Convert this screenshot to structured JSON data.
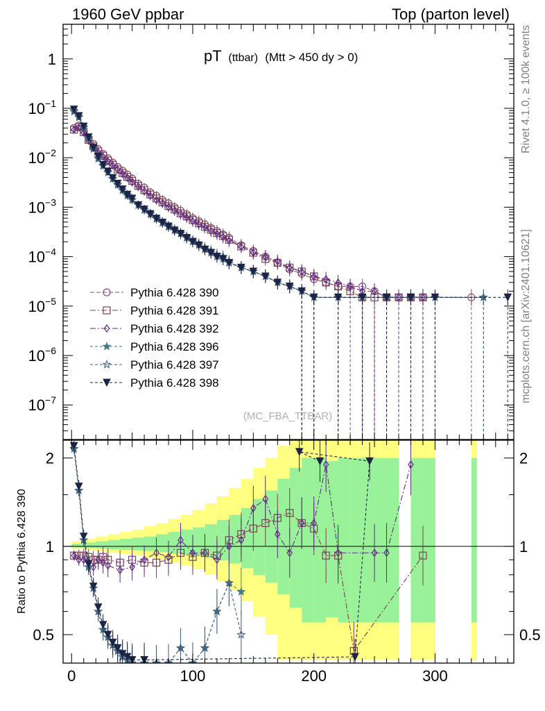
{
  "header": {
    "left": "1960 GeV ppbar",
    "right": "Top (parton level)"
  },
  "title": {
    "main": "pT",
    "sub1": "(ttbar)",
    "sub2": "(Mtt > 450 dy > 0)"
  },
  "side_labels": {
    "rivet": "Rivet 4.1.0, ≥ 100k events",
    "mcplots": "mcplots.cern.ch [arXiv:2401.10621]"
  },
  "watermark": "(MC_FBA_TTBAR)",
  "chart_data": {
    "type": "line",
    "title": "pT (ttbar) (Mtt > 450 dy > 0)",
    "xlabel": "",
    "ylabel": "",
    "ratio_ylabel": "Ratio to Pythia 6.428 390",
    "xlim": [
      -7,
      365
    ],
    "ylim": [
      2e-08,
      5
    ],
    "ylog": true,
    "ratio_ylim": [
      0.4,
      2.3
    ],
    "ratio_ylog": true,
    "x_ticks": [
      "0",
      "100",
      "200",
      "300"
    ],
    "x_tick_values": [
      0,
      100,
      200,
      300
    ],
    "y_ticks": [
      {
        "base": "1",
        "exp": "",
        "value": 1
      },
      {
        "base": "10",
        "exp": "−1",
        "value": 0.1
      },
      {
        "base": "10",
        "exp": "−2",
        "value": 0.01
      },
      {
        "base": "10",
        "exp": "−3",
        "value": 0.001
      },
      {
        "base": "10",
        "exp": "−4",
        "value": 0.0001
      },
      {
        "base": "10",
        "exp": "−5",
        "value": 1e-05
      },
      {
        "base": "10",
        "exp": "−6",
        "value": 1e-06
      },
      {
        "base": "10",
        "exp": "−7",
        "value": 1e-07
      }
    ],
    "ratio_ticks": [
      {
        "label": "2",
        "value": 2
      },
      {
        "label": "1",
        "value": 1
      },
      {
        "label": "0.5",
        "value": 0.5
      }
    ],
    "legend_position": "lower-left",
    "series": [
      {
        "name": "Pythia 6.428 390",
        "color": "#8a4d6e",
        "marker": "circle",
        "dash": "6,3",
        "x": [
          2,
          6,
          10,
          14,
          18,
          22,
          26,
          30,
          34,
          38,
          42,
          46,
          50,
          55,
          60,
          65,
          70,
          75,
          80,
          85,
          90,
          95,
          100,
          105,
          110,
          115,
          120,
          125,
          130,
          140,
          150,
          160,
          170,
          180,
          190,
          200,
          210,
          220,
          230,
          240,
          250,
          260,
          270,
          280,
          290,
          330
        ],
        "y": [
          0.04,
          0.045,
          0.035,
          0.025,
          0.019,
          0.015,
          0.012,
          0.0098,
          0.008,
          0.0065,
          0.0055,
          0.0046,
          0.0038,
          0.003,
          0.0025,
          0.002,
          0.0017,
          0.0014,
          0.0012,
          0.001,
          0.00085,
          0.00072,
          0.0006,
          0.00052,
          0.00045,
          0.00038,
          0.00033,
          0.00028,
          0.00024,
          0.00017,
          0.00013,
          0.0001,
          7.5e-05,
          5.5e-05,
          4.5e-05,
          3.5e-05,
          3e-05,
          2.5e-05,
          2.5e-05,
          2.5e-05,
          2e-05,
          1.5e-05,
          1.5e-05,
          1.5e-05,
          1.5e-05,
          1.5e-05
        ]
      },
      {
        "name": "Pythia 6.428 391",
        "color": "#7a4050",
        "marker": "square",
        "dash": "8,3,2,3",
        "x": [
          2,
          6,
          10,
          14,
          18,
          22,
          26,
          30,
          34,
          38,
          42,
          46,
          50,
          55,
          60,
          65,
          70,
          75,
          80,
          85,
          90,
          95,
          100,
          105,
          110,
          115,
          120,
          125,
          130,
          140,
          150,
          160,
          170,
          180,
          190,
          200,
          210,
          220,
          230,
          240,
          250,
          260,
          270,
          280,
          290
        ],
        "y": [
          0.037,
          0.042,
          0.033,
          0.023,
          0.017,
          0.0135,
          0.011,
          0.0088,
          0.0072,
          0.0058,
          0.0049,
          0.0041,
          0.0034,
          0.0027,
          0.0022,
          0.0018,
          0.0015,
          0.00125,
          0.00105,
          0.0009,
          0.00075,
          0.00065,
          0.00055,
          0.00047,
          0.0004,
          0.00035,
          0.0003,
          0.00026,
          0.00022,
          0.00016,
          0.00012,
          9e-05,
          7.5e-05,
          6e-05,
          5e-05,
          4e-05,
          3e-05,
          2.5e-05,
          2e-05,
          1.5e-05,
          1.5e-05,
          1.5e-05,
          1.5e-05,
          1.5e-05,
          1.5e-05
        ]
      },
      {
        "name": "Pythia 6.428 392",
        "color": "#5c2a86",
        "marker": "diamond",
        "dash": "8,3,2,3",
        "x": [
          2,
          6,
          10,
          14,
          18,
          22,
          26,
          30,
          34,
          38,
          42,
          46,
          50,
          55,
          60,
          65,
          70,
          75,
          80,
          85,
          90,
          95,
          100,
          105,
          110,
          115,
          120,
          125,
          130,
          140,
          150,
          160,
          170,
          180,
          190,
          200,
          210,
          220,
          230,
          240,
          250,
          260,
          270,
          280,
          290
        ],
        "y": [
          0.037,
          0.041,
          0.032,
          0.022,
          0.016,
          0.013,
          0.0105,
          0.0085,
          0.007,
          0.0057,
          0.0047,
          0.0039,
          0.0032,
          0.0026,
          0.0021,
          0.0017,
          0.0014,
          0.0012,
          0.001,
          0.00085,
          0.00072,
          0.00062,
          0.00052,
          0.00045,
          0.00039,
          0.00033,
          0.00029,
          0.00025,
          0.00021,
          0.00016,
          0.00012,
          0.0001,
          8e-05,
          6e-05,
          5e-05,
          4e-05,
          3.5e-05,
          3e-05,
          2.5e-05,
          2e-05,
          2e-05,
          1.5e-05,
          1.5e-05,
          1.5e-05,
          1.5e-05
        ]
      },
      {
        "name": "Pythia 6.428 396",
        "color": "#4b7a85",
        "marker": "star",
        "dash": "4,3",
        "x": [
          2,
          6,
          10,
          14,
          18,
          22,
          26,
          30,
          34,
          38,
          42,
          46,
          50,
          55,
          60,
          65,
          70,
          75,
          80,
          85,
          90,
          95,
          100,
          105,
          110,
          115,
          120,
          125,
          130,
          140,
          150,
          160,
          170,
          180,
          190,
          200,
          220,
          240,
          260,
          280,
          300,
          340
        ],
        "y": [
          0.085,
          0.065,
          0.04,
          0.024,
          0.015,
          0.0095,
          0.0068,
          0.005,
          0.0037,
          0.0028,
          0.0022,
          0.0017,
          0.0014,
          0.0011,
          0.0009,
          0.00074,
          0.0006,
          0.0005,
          0.00042,
          0.00035,
          0.0003,
          0.00025,
          0.00021,
          0.00018,
          0.00015,
          0.00013,
          0.00011,
          0.0001,
          8e-05,
          6e-05,
          5e-05,
          4e-05,
          3e-05,
          2.5e-05,
          2e-05,
          1.5e-05,
          1.5e-05,
          1.5e-05,
          1.5e-05,
          1.5e-05,
          1.5e-05,
          1.5e-05
        ]
      },
      {
        "name": "Pythia 6.428 397",
        "color": "#3d5a78",
        "marker": "star-open",
        "dash": "4,3",
        "x": [
          2,
          6,
          10,
          14,
          18,
          22,
          26,
          30,
          34,
          38,
          42,
          46,
          50,
          55,
          60,
          65,
          70,
          75,
          80,
          85,
          90,
          95,
          100,
          105,
          110,
          115,
          120,
          125,
          130,
          140,
          150,
          160,
          170,
          180,
          190,
          200,
          220,
          240,
          260,
          280,
          300,
          340
        ],
        "y": [
          0.09,
          0.068,
          0.042,
          0.025,
          0.0155,
          0.01,
          0.007,
          0.0052,
          0.0038,
          0.0029,
          0.0022,
          0.0018,
          0.0014,
          0.0011,
          0.00088,
          0.00072,
          0.00058,
          0.00048,
          0.0004,
          0.00034,
          0.00029,
          0.00024,
          0.0002,
          0.00017,
          0.00014,
          0.00012,
          0.0001,
          9e-05,
          7.5e-05,
          6e-05,
          5e-05,
          4e-05,
          3e-05,
          2.5e-05,
          2e-05,
          1.5e-05,
          1.5e-05,
          1.5e-05,
          1.5e-05,
          1.5e-05,
          1.5e-05,
          1.5e-05
        ]
      },
      {
        "name": "Pythia 6.428 398",
        "color": "#1c2447",
        "marker": "tri-down",
        "dash": "4,3",
        "x": [
          2,
          6,
          10,
          14,
          18,
          22,
          26,
          30,
          34,
          38,
          42,
          46,
          50,
          55,
          60,
          65,
          70,
          75,
          80,
          85,
          90,
          95,
          100,
          105,
          110,
          115,
          120,
          125,
          130,
          140,
          150,
          160,
          170,
          180,
          190,
          200,
          220,
          240,
          260,
          280,
          300,
          360
        ],
        "y": [
          0.095,
          0.07,
          0.043,
          0.026,
          0.016,
          0.0105,
          0.0072,
          0.0053,
          0.0039,
          0.003,
          0.0023,
          0.0018,
          0.0015,
          0.0011,
          0.0009,
          0.00073,
          0.00059,
          0.00049,
          0.00041,
          0.00034,
          0.00029,
          0.00024,
          0.0002,
          0.00017,
          0.00014,
          0.00012,
          0.0001,
          9e-05,
          7.5e-05,
          6e-05,
          5e-05,
          4e-05,
          3e-05,
          2.5e-05,
          2e-05,
          1.5e-05,
          1.5e-05,
          1.5e-05,
          1.5e-05,
          1.5e-05,
          1.5e-05,
          1.5e-05
        ]
      }
    ],
    "ratio_band": {
      "x": [
        0,
        10,
        20,
        30,
        40,
        50,
        60,
        70,
        80,
        90,
        100,
        110,
        120,
        130,
        140,
        150,
        160,
        170,
        180,
        190,
        200,
        210,
        220,
        230,
        240,
        250,
        260,
        280,
        290,
        330
      ],
      "green": [
        0.02,
        0.03,
        0.04,
        0.05,
        0.06,
        0.07,
        0.08,
        0.1,
        0.12,
        0.14,
        0.16,
        0.19,
        0.23,
        0.28,
        0.35,
        0.45,
        0.55,
        0.7,
        0.85,
        1.0,
        1.0,
        0.95,
        1.0,
        1.0,
        1.0,
        1.0,
        1.0,
        1.0,
        1.0,
        1.0
      ],
      "yellow": [
        0.04,
        0.06,
        0.08,
        0.1,
        0.12,
        0.14,
        0.17,
        0.2,
        0.24,
        0.28,
        0.33,
        0.4,
        0.48,
        0.58,
        0.7,
        0.85,
        1.0,
        1.2,
        1.4,
        1.6,
        1.6,
        1.5,
        1.6,
        1.6,
        1.6,
        1.6,
        1.6,
        1.6,
        1.6,
        1.6
      ]
    },
    "ratio_series": [
      {
        "name": "Pythia 6.428 391",
        "x": [
          2,
          6,
          10,
          14,
          18,
          22,
          26,
          30,
          40,
          50,
          60,
          70,
          80,
          90,
          100,
          110,
          120,
          130,
          140,
          150,
          160,
          170,
          180,
          190,
          200,
          210,
          220,
          233,
          290
        ],
        "y": [
          0.93,
          0.93,
          0.93,
          0.92,
          0.9,
          0.9,
          0.92,
          0.9,
          0.88,
          0.9,
          0.88,
          0.88,
          0.9,
          0.95,
          0.92,
          0.95,
          0.93,
          1.05,
          1.1,
          1.15,
          1.2,
          1.25,
          1.3,
          1.2,
          1.15,
          0.93,
          0.93,
          0.44,
          0.93
        ]
      },
      {
        "name": "Pythia 6.428 392",
        "x": [
          2,
          6,
          10,
          14,
          18,
          22,
          26,
          30,
          40,
          50,
          60,
          70,
          80,
          90,
          100,
          110,
          120,
          130,
          140,
          150,
          160,
          170,
          180,
          190,
          200,
          210,
          220,
          250,
          260,
          280
        ],
        "y": [
          0.93,
          0.9,
          0.9,
          0.88,
          0.85,
          0.9,
          0.88,
          0.86,
          0.83,
          0.85,
          0.9,
          0.95,
          0.92,
          1.05,
          0.95,
          0.95,
          0.9,
          1.0,
          1.05,
          1.35,
          1.45,
          1.1,
          0.95,
          1.2,
          1.2,
          1.9,
          0.95,
          0.95,
          0.95,
          1.9
        ]
      },
      {
        "name": "Pythia 6.428 396",
        "x": [
          2,
          6,
          10,
          14,
          18,
          22,
          26,
          30,
          34,
          38,
          42,
          46,
          50,
          60,
          70,
          80,
          90,
          100,
          110,
          120,
          130,
          140
        ],
        "y": [
          2.15,
          1.55,
          1.05,
          0.85,
          0.72,
          0.6,
          0.52,
          0.49,
          0.46,
          0.44,
          0.42,
          0.41,
          0.4,
          0.4,
          0.4,
          0.4,
          0.45,
          0.4,
          0.45,
          0.6,
          0.75,
          0.7
        ]
      },
      {
        "name": "Pythia 6.428 397",
        "x": [
          2,
          6,
          10,
          14,
          18,
          22,
          26,
          30,
          34,
          38,
          42,
          46,
          50,
          60,
          70,
          80,
          90,
          100,
          110,
          120,
          130,
          140
        ],
        "y": [
          2.15,
          1.55,
          1.05,
          0.85,
          0.72,
          0.6,
          0.52,
          0.49,
          0.46,
          0.44,
          0.42,
          0.41,
          0.4,
          0.4,
          0.4,
          0.4,
          0.45,
          0.4,
          0.45,
          0.6,
          0.75,
          0.5
        ]
      },
      {
        "name": "Pythia 6.428 398",
        "x": [
          2,
          6,
          10,
          14,
          18,
          22,
          26,
          30,
          34,
          38,
          42,
          46,
          50,
          60,
          234,
          246,
          188,
          205
        ],
        "y": [
          2.2,
          1.6,
          1.08,
          0.87,
          0.73,
          0.62,
          0.54,
          0.5,
          0.47,
          0.45,
          0.43,
          0.42,
          0.41,
          0.41,
          0.42,
          1.95,
          2.1,
          1.95
        ]
      }
    ]
  }
}
